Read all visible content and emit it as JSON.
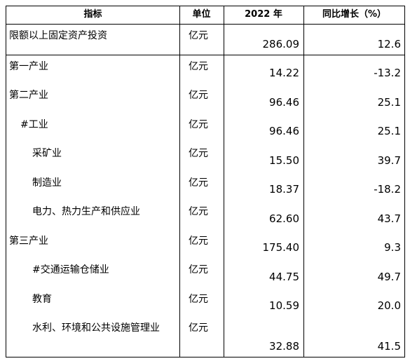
{
  "table": {
    "header": [
      "指标",
      "单位",
      "2022 年",
      "同比增长（%）"
    ],
    "rows": [
      [
        "限额以上固定资产投资",
        "亿元",
        "286.09",
        "12.6"
      ],
      [
        "第一产业",
        "亿元",
        "14.22",
        "-13.2"
      ],
      [
        "第二产业",
        "亿元",
        "96.46",
        "25.1"
      ],
      [
        "#工业",
        "亿元",
        "96.46",
        "25.1"
      ],
      [
        "采矿业",
        "亿元",
        "15.50",
        "39.7"
      ],
      [
        "制造业",
        "亿元",
        "18.37",
        "-18.2"
      ],
      [
        "电力、热力生产和供应业",
        "亿元",
        "62.60",
        "43.7"
      ],
      [
        "第三产业",
        "亿元",
        "175.40",
        "9.3"
      ],
      [
        "#交通运输仓储业",
        "亿元",
        "44.75",
        "49.7"
      ],
      [
        "教育",
        "亿元",
        "10.59",
        "20.0"
      ],
      [
        "水利、环境和公共设施管理业",
        "亿元",
        "32.88",
        "41.5"
      ]
    ]
  }
}
